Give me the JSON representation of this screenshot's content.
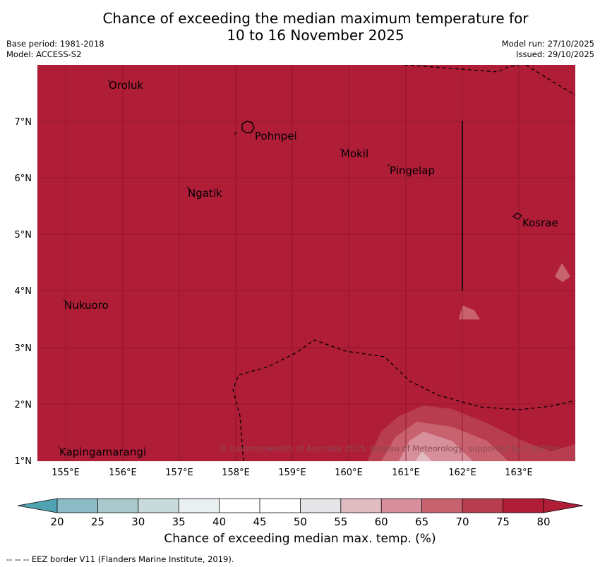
{
  "title": {
    "line1": "Chance of exceeding the median maximum temperature for",
    "line2": "10 to 16 November 2025"
  },
  "meta_left": {
    "base_period": "Base period: 1981-2018",
    "model": "Model: ACCESS-S2"
  },
  "meta_right": {
    "model_run": "Model run: 27/10/2025",
    "issued": "Issued: 29/10/2025"
  },
  "map": {
    "lat_ticks": [
      "1°N",
      "2°N",
      "3°N",
      "4°N",
      "5°N",
      "6°N",
      "7°N"
    ],
    "lon_ticks": [
      "155°E",
      "156°E",
      "157°E",
      "158°E",
      "159°E",
      "160°E",
      "161°E",
      "162°E",
      "163°E"
    ],
    "places": [
      "Oroluk",
      "Pohnpei",
      "Mokil",
      "Pingelap",
      "Ngatik",
      "Kosrae",
      "Nukuoro",
      "Kapingamarangi"
    ],
    "copyright": "© Commonwealth of Australia 2025, Bureau of Meteorology, supported by COSPPac"
  },
  "colorbar": {
    "ticks": [
      "20",
      "25",
      "30",
      "35",
      "40",
      "45",
      "50",
      "55",
      "60",
      "65",
      "70",
      "75",
      "80"
    ],
    "label": "Chance of exceeding median max. temp. (%)",
    "colors": [
      "#6aaebb",
      "#8cbac5",
      "#a8c8cc",
      "#c9dadc",
      "#eaf0f1",
      "#ffffff",
      "#ffffff",
      "#e6e6e8",
      "#e1bcc2",
      "#d88f9c",
      "#c9626f",
      "#b83d4e",
      "#b01d37",
      "#4fa3b3"
    ]
  },
  "footer": "--  --  -- EEZ border V11 (Flanders Marine Institute, 2019)."
}
